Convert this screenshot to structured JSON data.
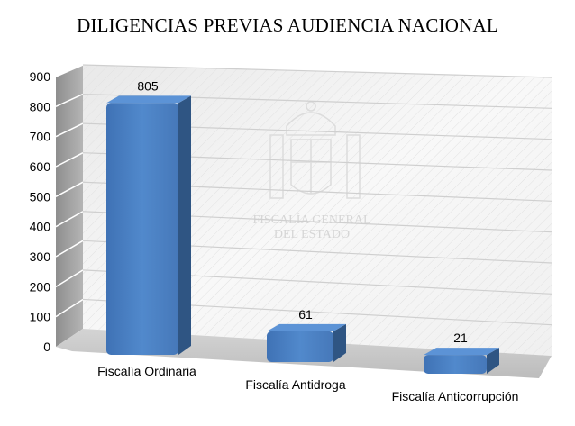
{
  "chart_data": {
    "type": "bar",
    "title": "DILIGENCIAS PREVIAS AUDIENCIA NACIONAL",
    "categories": [
      "Fiscalía Ordinaria",
      "Fiscalía Antidroga",
      "Fiscalía Anticorrupción"
    ],
    "values": [
      805,
      61,
      21
    ],
    "data_labels": [
      "805",
      "61",
      "21"
    ],
    "xlabel": "",
    "ylabel": "",
    "ylim": [
      0,
      900
    ],
    "yticks": [
      "0",
      "100",
      "200",
      "300",
      "400",
      "500",
      "600",
      "700",
      "800",
      "900"
    ],
    "grid": true,
    "style": "3d",
    "bar_color": "#4a7fc1",
    "bar_side_color": "#2f5583",
    "legend": "none"
  },
  "watermark": {
    "line1": "FISCALÍA GENERAL",
    "line2": "DEL ESTADO"
  }
}
